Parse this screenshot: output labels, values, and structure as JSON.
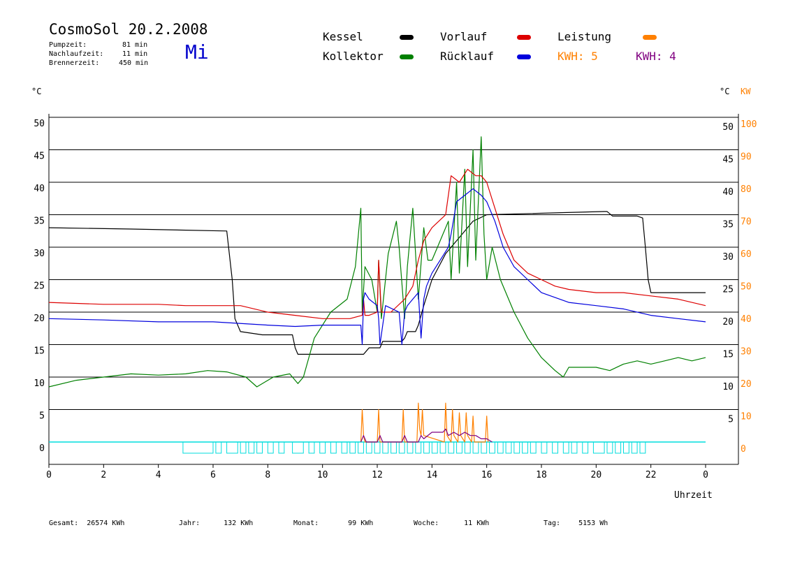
{
  "header": {
    "title": "CosmoSol 20.2.2008",
    "day": "Mi",
    "info": [
      {
        "label": "Pumpzeit:",
        "value": "81 min"
      },
      {
        "label": "Nachlaufzeit:",
        "value": "11 min"
      },
      {
        "label": "Brennerzeit:",
        "value": "450 min"
      }
    ]
  },
  "legend": {
    "kessel": {
      "label": "Kessel",
      "color": "#000000"
    },
    "kollektor": {
      "label": "Kollektor",
      "color": "#008000"
    },
    "vorlauf": {
      "label": "Vorlauf",
      "color": "#dd0000"
    },
    "ruecklauf": {
      "label": "Rücklauf",
      "color": "#0000dd"
    },
    "leistung": {
      "label": "Leistung",
      "color": "#ff8000"
    },
    "kwh1": {
      "label": "KWH: 5",
      "color": "#ff8000"
    },
    "kwh2": {
      "label": "KWH: 4",
      "color": "#800080"
    }
  },
  "footer": [
    {
      "label": "Gesamt:",
      "value": "26574 KWh"
    },
    {
      "label": "Jahr:",
      "value": "132 KWh"
    },
    {
      "label": "Monat:",
      "value": "99 KWh"
    },
    {
      "label": "Woche:",
      "value": "11 KWh"
    },
    {
      "label": "Tag:",
      "value": "5153 Wh"
    }
  ],
  "chart_data": {
    "type": "line",
    "xlabel": "Uhrzeit",
    "ylabel_left": "°C",
    "ylabel_right": "°C",
    "ylabel_right2": "KW",
    "xlim": [
      0,
      24
    ],
    "ylim": [
      0,
      50
    ],
    "ylim_right2": [
      0,
      100
    ],
    "xticks": [
      "0",
      "2",
      "4",
      "6",
      "8",
      "10",
      "12",
      "14",
      "16",
      "18",
      "20",
      "22",
      "0"
    ],
    "yticks_left": [
      "50",
      "45",
      "40",
      "35",
      "30",
      "25",
      "20",
      "15",
      "10",
      "5",
      "0"
    ],
    "yticks_right": [
      "50",
      "45",
      "40",
      "35",
      "30",
      "25",
      "20",
      "15",
      "10",
      "5"
    ],
    "yticks_right2": [
      "100",
      "90",
      "80",
      "70",
      "60",
      "50",
      "40",
      "30",
      "20",
      "10",
      "0"
    ],
    "grid": true,
    "series": [
      {
        "name": "Kessel",
        "color": "#000000",
        "x": [
          0,
          3,
          6.5,
          6.7,
          6.8,
          7,
          7.8,
          8.9,
          9,
          9.1,
          10,
          11.5,
          11.6,
          11.7,
          12.1,
          12.2,
          12.9,
          13.0,
          13.1,
          13.4,
          13.5,
          13.7,
          14,
          14.5,
          15,
          15.5,
          16,
          20.3,
          20.4,
          20.6,
          21.5,
          21.7,
          21.8,
          21.9,
          22,
          24
        ],
        "y": [
          33,
          32.8,
          32.5,
          25,
          19,
          17,
          16.5,
          16.5,
          14.5,
          13.5,
          13.5,
          13.5,
          14,
          14.5,
          14.5,
          15.5,
          15.5,
          16,
          17,
          17,
          18,
          21,
          25,
          29,
          31.5,
          34,
          35,
          35.5,
          35.5,
          34.8,
          34.8,
          34.5,
          30,
          25,
          23,
          23
        ]
      },
      {
        "name": "Kollektor",
        "color": "#008000",
        "x": [
          0,
          1,
          2,
          3,
          4,
          5,
          5.8,
          6.5,
          7.2,
          7.6,
          8.2,
          8.8,
          9.1,
          9.3,
          9.7,
          10.3,
          10.9,
          11.2,
          11.4,
          11.45,
          11.55,
          11.8,
          12.0,
          12.05,
          12.15,
          12.4,
          12.7,
          12.8,
          13.0,
          13.1,
          13.3,
          13.5,
          13.7,
          13.85,
          14,
          14.2,
          14.4,
          14.6,
          14.7,
          14.9,
          15.0,
          15.2,
          15.3,
          15.5,
          15.6,
          15.8,
          15.9,
          16.0,
          16.2,
          16.5,
          17,
          17.5,
          18,
          18.5,
          18.8,
          19,
          19.5,
          20,
          20.5,
          21,
          21.5,
          22,
          22.5,
          23,
          23.5,
          24
        ],
        "y": [
          8.5,
          9.5,
          10,
          10.5,
          10.3,
          10.5,
          11,
          10.8,
          10,
          8.5,
          10,
          10.5,
          9,
          10,
          16,
          20,
          22,
          27,
          36,
          20,
          27,
          25,
          20,
          28,
          19,
          29,
          34,
          30,
          19,
          27,
          36,
          22,
          33,
          28,
          28,
          30,
          32,
          34,
          25,
          40,
          26,
          42,
          27,
          45,
          28,
          47,
          32,
          25,
          30,
          25,
          20,
          16,
          13,
          11,
          10,
          11.5,
          11.5,
          11.5,
          11,
          12,
          12.5,
          12,
          12.5,
          13,
          12.5,
          13
        ]
      },
      {
        "name": "Vorlauf",
        "color": "#dd0000",
        "x": [
          0,
          2,
          4,
          5,
          6,
          7,
          8,
          9,
          10,
          11,
          11.45,
          11.5,
          11.55,
          11.7,
          12,
          12.05,
          12.15,
          12.5,
          13,
          13.3,
          13.5,
          13.7,
          14,
          14.5,
          14.7,
          15,
          15.3,
          15.6,
          15.8,
          16,
          16.3,
          16.6,
          17,
          17.5,
          18,
          18.5,
          19,
          20,
          21,
          22,
          23,
          24
        ],
        "y": [
          21.5,
          21.2,
          21.2,
          21,
          21,
          21,
          20,
          19.5,
          19,
          19,
          19.5,
          22,
          19.5,
          19.5,
          20,
          28,
          20,
          20,
          22,
          24,
          28,
          31,
          33,
          35,
          41,
          40,
          42,
          41,
          41,
          40,
          36,
          32,
          28,
          26,
          25,
          24,
          23.5,
          23,
          23,
          22.5,
          22,
          21
        ]
      },
      {
        "name": "Rücklauf",
        "color": "#0000dd",
        "x": [
          0,
          2,
          4,
          6,
          8,
          9,
          10,
          11,
          11.3,
          11.4,
          11.45,
          11.5,
          11.55,
          11.7,
          12,
          12.05,
          12.1,
          12.3,
          12.8,
          12.9,
          13,
          13.1,
          13.3,
          13.5,
          13.6,
          13.7,
          13.8,
          14,
          14.3,
          14.6,
          14.7,
          14.9,
          15.2,
          15.5,
          15.8,
          16,
          16.3,
          16.6,
          17,
          17.5,
          18,
          19,
          20,
          21,
          22,
          23,
          24
        ],
        "y": [
          19,
          18.8,
          18.5,
          18.5,
          18,
          17.8,
          18,
          18,
          18,
          18,
          15,
          22,
          23,
          22,
          21,
          19,
          15,
          21,
          20,
          15,
          20,
          21,
          22,
          23,
          16,
          22,
          24,
          26,
          28,
          30,
          32,
          37,
          38,
          39,
          38,
          37,
          34,
          30,
          27,
          25,
          23,
          21.5,
          21,
          20.5,
          19.5,
          19,
          18.5
        ]
      },
      {
        "name": "Leistung",
        "color": "#ff8000",
        "x": [
          11.4,
          11.45,
          11.5,
          11.55,
          12.0,
          12.05,
          12.1,
          12.9,
          12.95,
          13.0,
          13.45,
          13.5,
          13.55,
          13.6,
          13.65,
          13.7,
          14.45,
          14.5,
          14.55,
          14.7,
          14.75,
          14.8,
          14.95,
          15.0,
          15.05,
          15.2,
          15.25,
          15.3,
          15.45,
          15.5,
          15.55,
          15.95,
          16.0,
          16.05
        ],
        "y": [
          0,
          5,
          1,
          0,
          0,
          5,
          0,
          0,
          5,
          0,
          0,
          6,
          2,
          1,
          5,
          1,
          0,
          6,
          1,
          0,
          5,
          1,
          0,
          4.5,
          1,
          0,
          4.5,
          1,
          0,
          4,
          0,
          0,
          4,
          0
        ]
      },
      {
        "name": "Leistung2",
        "color": "#800080",
        "x": [
          11.4,
          11.5,
          11.6,
          12.0,
          12.1,
          12.2,
          12.9,
          13.0,
          13.1,
          13.5,
          13.6,
          13.7,
          14,
          14.4,
          14.5,
          14.6,
          14.8,
          15.0,
          15.2,
          15.4,
          15.6,
          15.8,
          16.0,
          16.2
        ],
        "y": [
          0,
          1,
          0,
          0,
          1,
          0,
          0,
          1,
          0,
          0,
          1,
          0.5,
          1.5,
          1.5,
          2,
          1,
          1.5,
          1,
          1.5,
          1,
          1,
          0.5,
          0.5,
          0
        ]
      }
    ],
    "pump_blocks": [
      [
        4.9,
        6
      ],
      [
        6.1,
        6.3
      ],
      [
        6.5,
        6.9
      ],
      [
        7.0,
        7.2
      ],
      [
        7.3,
        7.5
      ],
      [
        7.6,
        7.8
      ],
      [
        8.0,
        8.2
      ],
      [
        8.4,
        8.6
      ],
      [
        8.9,
        9.3
      ],
      [
        9.5,
        9.7
      ],
      [
        9.9,
        10.1
      ],
      [
        10.3,
        10.5
      ],
      [
        10.7,
        10.9
      ],
      [
        11.0,
        11.2
      ],
      [
        11.3,
        11.5
      ],
      [
        11.6,
        11.8
      ],
      [
        11.9,
        12.1
      ],
      [
        12.2,
        12.4
      ],
      [
        12.5,
        12.7
      ],
      [
        12.8,
        13.0
      ],
      [
        13.1,
        13.3
      ],
      [
        13.4,
        13.6
      ],
      [
        13.7,
        13.9
      ],
      [
        14.0,
        14.2
      ],
      [
        14.3,
        14.5
      ],
      [
        14.6,
        14.8
      ],
      [
        14.9,
        15.1
      ],
      [
        15.2,
        15.4
      ],
      [
        15.5,
        15.7
      ],
      [
        15.8,
        16.0
      ],
      [
        16.1,
        16.3
      ],
      [
        16.4,
        16.6
      ],
      [
        16.7,
        16.9
      ],
      [
        17.0,
        17.2
      ],
      [
        17.3,
        17.5
      ],
      [
        17.6,
        17.8
      ],
      [
        18.0,
        18.2
      ],
      [
        18.4,
        18.6
      ],
      [
        18.8,
        19.0
      ],
      [
        19.1,
        19.3
      ],
      [
        19.5,
        19.7
      ],
      [
        19.9,
        20.3
      ],
      [
        20.4,
        20.6
      ],
      [
        20.7,
        20.9
      ],
      [
        21.0,
        21.2
      ],
      [
        21.3,
        21.5
      ],
      [
        21.6,
        21.8
      ]
    ]
  }
}
